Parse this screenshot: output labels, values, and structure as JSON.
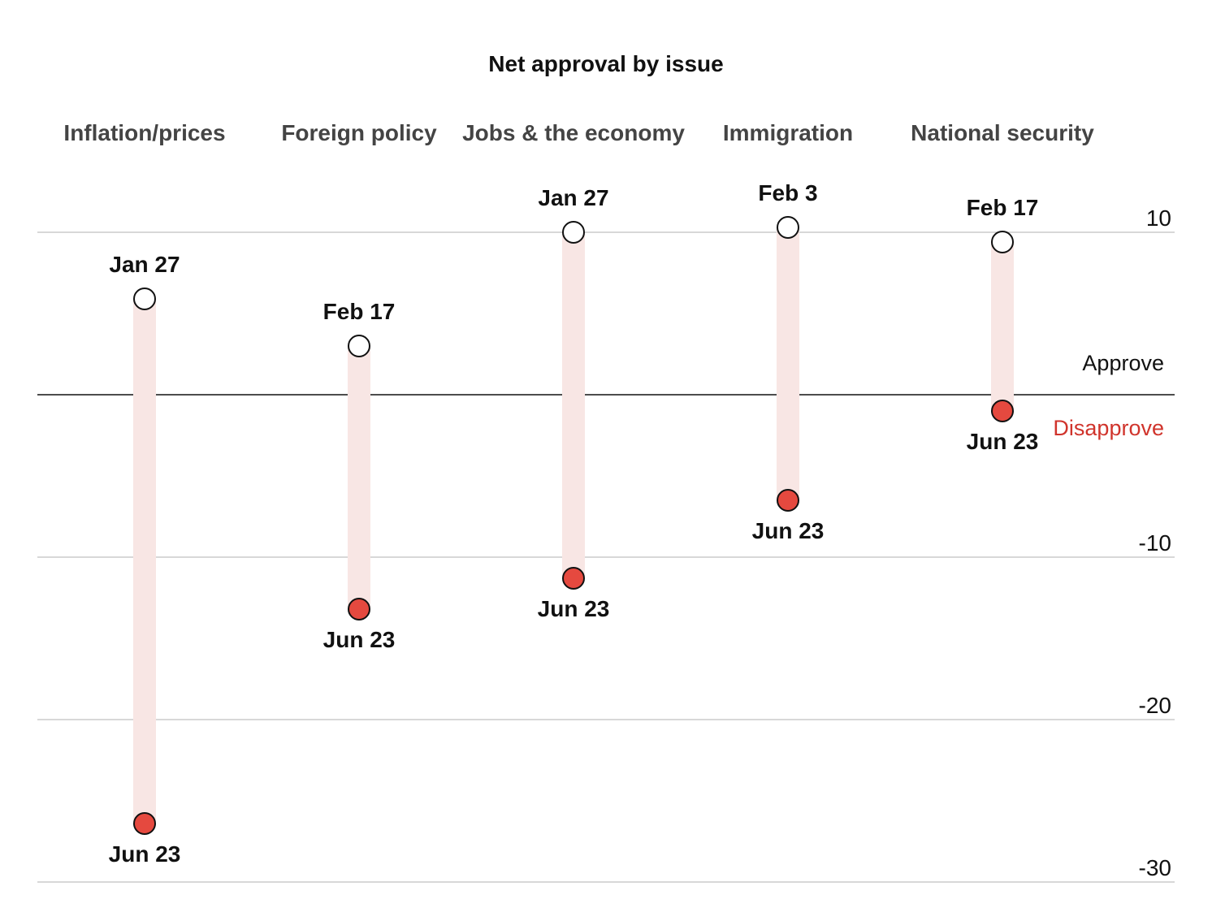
{
  "chart_data": {
    "type": "dot-range",
    "title": "Net approval by issue",
    "categories": [
      "Inflation/prices",
      "Foreign policy",
      "Jobs & the economy",
      "Immigration",
      "National security"
    ],
    "series": [
      {
        "name": "start",
        "dates": [
          "Jan 27",
          "Feb 17",
          "Jan 27",
          "Feb 3",
          "Feb 17"
        ],
        "values": [
          5.9,
          3.0,
          10.0,
          10.3,
          9.4
        ]
      },
      {
        "name": "Jun 23",
        "dates": [
          "Jun 23",
          "Jun 23",
          "Jun 23",
          "Jun 23",
          "Jun 23"
        ],
        "values": [
          -26.4,
          -13.2,
          -11.3,
          -6.5,
          -1.0
        ]
      }
    ],
    "ylim": [
      -30,
      10
    ],
    "yticks": [
      10,
      -10,
      -20,
      -30
    ],
    "tick_labels": [
      "10",
      "-10",
      "-20",
      "-30"
    ],
    "grid": true,
    "zero_line": true,
    "legend": {
      "approve": "Approve",
      "disapprove": "Disapprove"
    },
    "colors": {
      "start_fill": "#ffffff",
      "end_fill": "#e5493f",
      "range_bar": "#f8e6e4",
      "gridline": "#cccccc",
      "zero_line": "#111111",
      "disapprove_text": "#d0342c",
      "category_text": "#444444"
    }
  }
}
